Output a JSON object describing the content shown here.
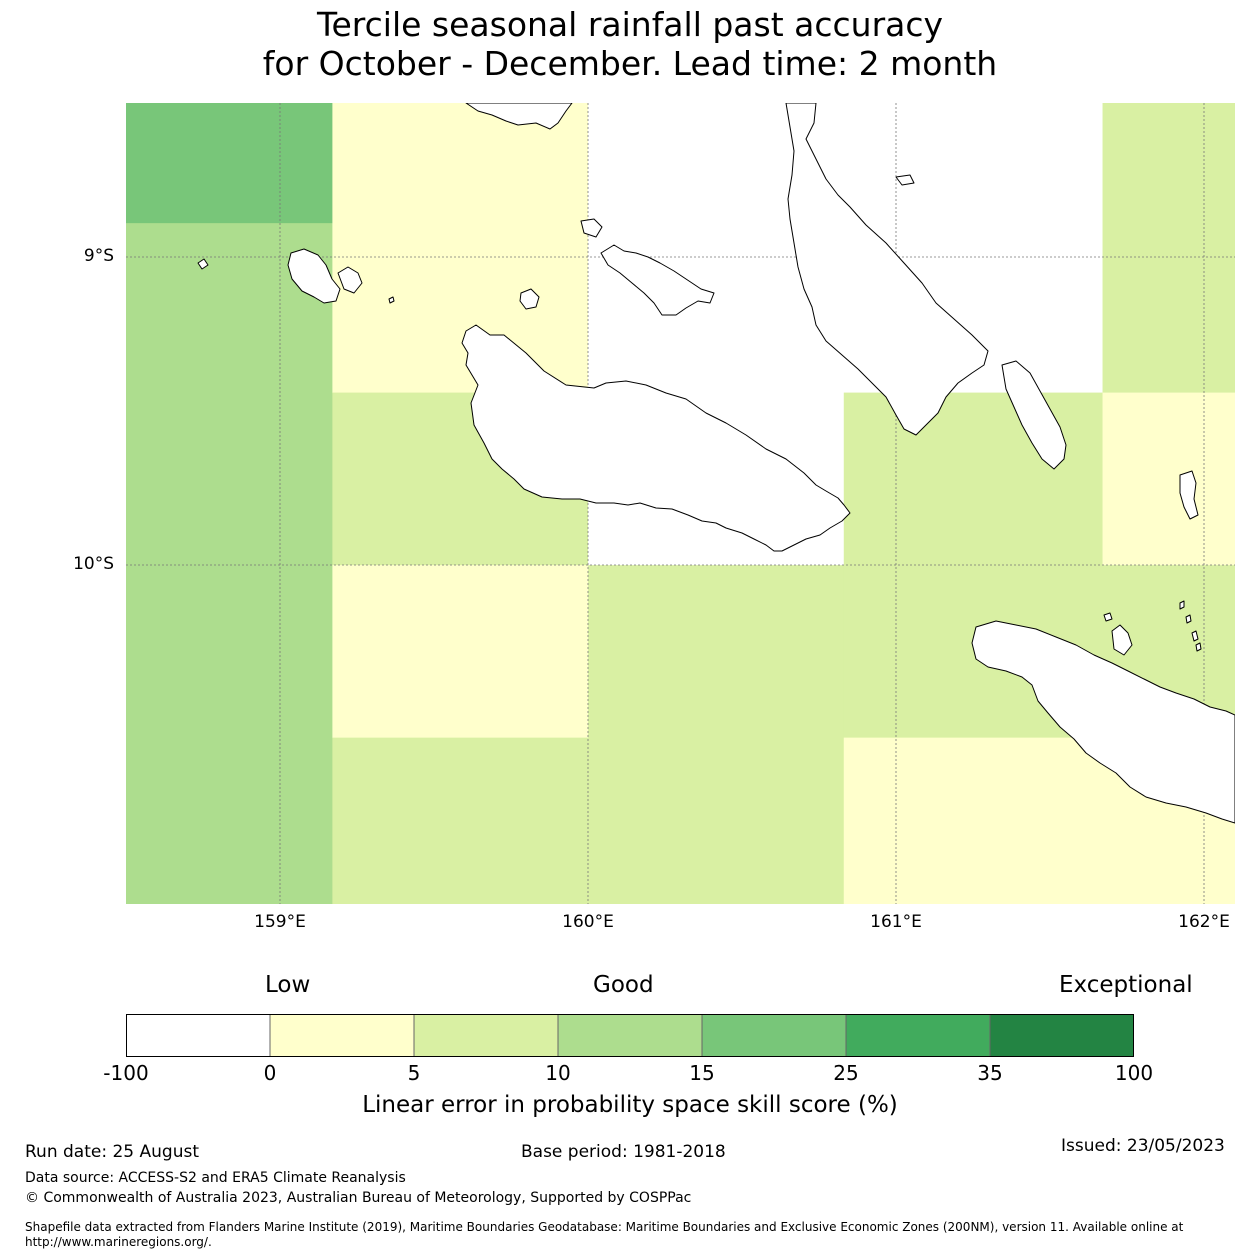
{
  "title": {
    "line1": "Tercile seasonal rainfall past accuracy",
    "line2": "for October - December. Lead time: 2 month"
  },
  "map": {
    "lat_labels": [
      "9°S",
      "10°S"
    ],
    "lon_labels": [
      "159°E",
      "160°E",
      "161°E",
      "162°E"
    ],
    "extent": {
      "lon_min": 158.5,
      "lon_max": 162.1,
      "lat_min": -11.1,
      "lat_max": -8.5
    },
    "grid_cells": [
      {
        "lon0": 158.5,
        "lon1": 159.17,
        "lat0": -8.89,
        "lat1": -8.5,
        "category": "15-25"
      },
      {
        "lon0": 158.5,
        "lon1": 159.17,
        "lat0": -11.1,
        "lat1": -8.89,
        "category": "10-15"
      },
      {
        "lon0": 159.17,
        "lon1": 160.0,
        "lat0": -9.44,
        "lat1": -8.5,
        "category": "0-5"
      },
      {
        "lon0": 159.17,
        "lon1": 160.0,
        "lat0": -10.0,
        "lat1": -9.44,
        "category": "5-10"
      },
      {
        "lon0": 159.17,
        "lon1": 160.0,
        "lat0": -10.56,
        "lat1": -10.0,
        "category": "0-5"
      },
      {
        "lon0": 159.17,
        "lon1": 160.0,
        "lat0": -11.1,
        "lat1": -10.56,
        "category": "5-10"
      },
      {
        "lon0": 160.0,
        "lon1": 160.83,
        "lat0": -10.0,
        "lat1": -8.5,
        "category": "-100-0"
      },
      {
        "lon0": 160.0,
        "lon1": 160.83,
        "lat0": -11.1,
        "lat1": -10.0,
        "category": "5-10"
      },
      {
        "lon0": 160.83,
        "lon1": 161.67,
        "lat0": -9.44,
        "lat1": -8.5,
        "category": "-100-0"
      },
      {
        "lon0": 160.83,
        "lon1": 161.67,
        "lat0": -10.0,
        "lat1": -9.44,
        "category": "5-10"
      },
      {
        "lon0": 160.83,
        "lon1": 161.67,
        "lat0": -10.56,
        "lat1": -10.0,
        "category": "5-10"
      },
      {
        "lon0": 160.83,
        "lon1": 161.67,
        "lat0": -11.1,
        "lat1": -10.56,
        "category": "0-5"
      },
      {
        "lon0": 161.67,
        "lon1": 162.1,
        "lat0": -9.44,
        "lat1": -8.5,
        "category": "5-10"
      },
      {
        "lon0": 161.67,
        "lon1": 162.1,
        "lat0": -10.0,
        "lat1": -9.44,
        "category": "0-5"
      },
      {
        "lon0": 161.67,
        "lon1": 162.1,
        "lat0": -10.56,
        "lat1": -10.0,
        "category": "5-10"
      },
      {
        "lon0": 161.67,
        "lon1": 162.1,
        "lat0": -11.1,
        "lat1": -10.56,
        "category": "0-5"
      }
    ]
  },
  "colorbar": {
    "headings": {
      "low": "Low",
      "good": "Good",
      "exceptional": "Exceptional"
    },
    "ticks": [
      "-100",
      "0",
      "5",
      "10",
      "15",
      "25",
      "35",
      "100"
    ],
    "bins": [
      {
        "range": "-100-0",
        "color": "#ffffff"
      },
      {
        "range": "0-5",
        "color": "#ffffcc"
      },
      {
        "range": "5-10",
        "color": "#d9f0a3"
      },
      {
        "range": "10-15",
        "color": "#addd8e"
      },
      {
        "range": "15-25",
        "color": "#78c679"
      },
      {
        "range": "25-35",
        "color": "#41ab5d"
      },
      {
        "range": "35-100",
        "color": "#238443"
      }
    ],
    "label": "Linear error in probability space skill score (%)"
  },
  "footer": {
    "run_date": "Run date: 25 August",
    "base_period": "Base period: 1981-2018",
    "issued": "Issued: 23/05/2023",
    "data_source": "Data source: ACCESS-S2 and ERA5 Climate Reanalysis",
    "copyright": "© Commonwealth of Australia 2023, Australian Bureau of Meteorology, Supported by COSPPac",
    "shapefile_line1": "Shapefile data extracted from Flanders Marine Institute (2019), Maritime Boundaries Geodatabase: Maritime Boundaries and Exclusive Economic Zones (200NM), version 11. Available online at",
    "shapefile_line2": "http://www.marineregions.org/."
  }
}
